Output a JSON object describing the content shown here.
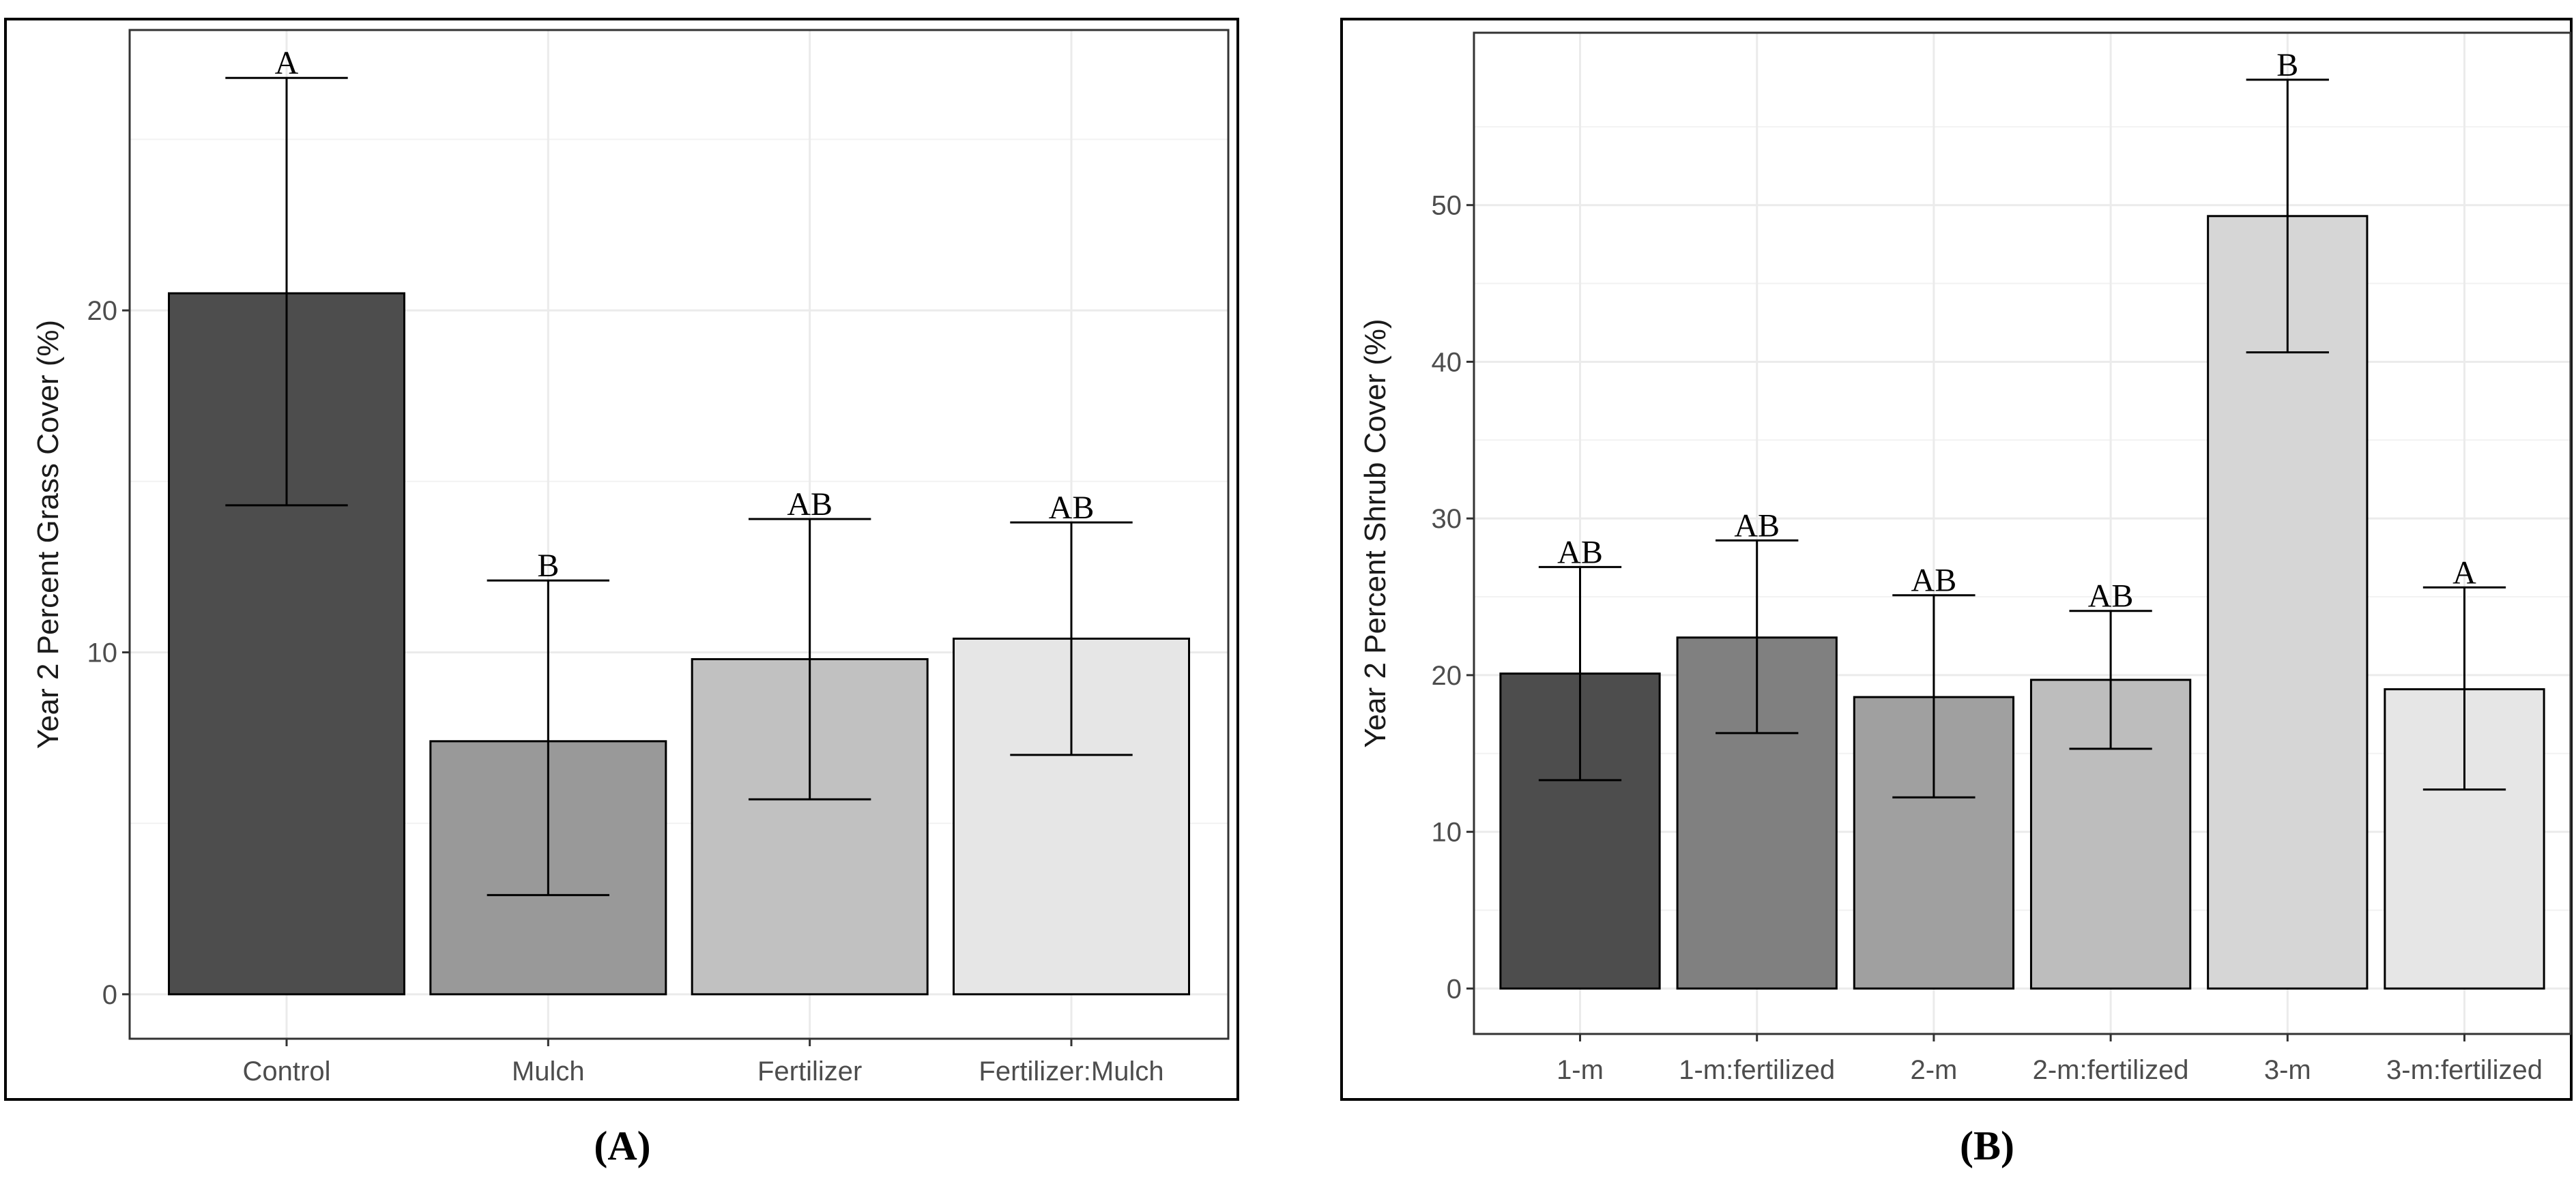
{
  "chart_data": [
    {
      "type": "bar",
      "panel_label": "(A)",
      "ylabel": "Year 2 Percent Grass Cover (%)",
      "xlabel": "",
      "categories": [
        "Control",
        "Mulch",
        "Fertilizer",
        "Fertilizer:Mulch"
      ],
      "values": [
        20.5,
        7.4,
        9.8,
        10.4
      ],
      "error_low": [
        14.3,
        2.9,
        5.7,
        7.0
      ],
      "error_high": [
        26.8,
        12.1,
        13.9,
        13.8
      ],
      "letters": [
        "A",
        "B",
        "AB",
        "AB"
      ],
      "fills": [
        "#4d4d4d",
        "#999999",
        "#c1c1c1",
        "#e6e6e6"
      ],
      "yticks": [
        0,
        10,
        20
      ],
      "ylim": [
        -1.3,
        28.2
      ],
      "grid": true
    },
    {
      "type": "bar",
      "panel_label": "(B)",
      "ylabel": "Year 2 Percent Shrub Cover (%)",
      "xlabel": "",
      "categories": [
        "1-m",
        "1-m:fertilized",
        "2-m",
        "2-m:fertilized",
        "3-m",
        "3-m:fertilized"
      ],
      "values": [
        20.1,
        22.4,
        18.6,
        19.7,
        49.3,
        19.1
      ],
      "error_low": [
        13.3,
        16.3,
        12.2,
        15.3,
        40.6,
        12.7
      ],
      "error_high": [
        26.9,
        28.6,
        25.1,
        24.1,
        58.0,
        25.6
      ],
      "letters": [
        "AB",
        "AB",
        "AB",
        "AB",
        "B",
        "A"
      ],
      "fills": [
        "#4d4d4d",
        "#808080",
        "#a0a0a0",
        "#bdbdbd",
        "#d6d6d6",
        "#e6e6e6"
      ],
      "yticks": [
        0,
        10,
        20,
        30,
        40,
        50
      ],
      "ylim": [
        -2.9,
        61.0
      ],
      "grid": true
    }
  ]
}
